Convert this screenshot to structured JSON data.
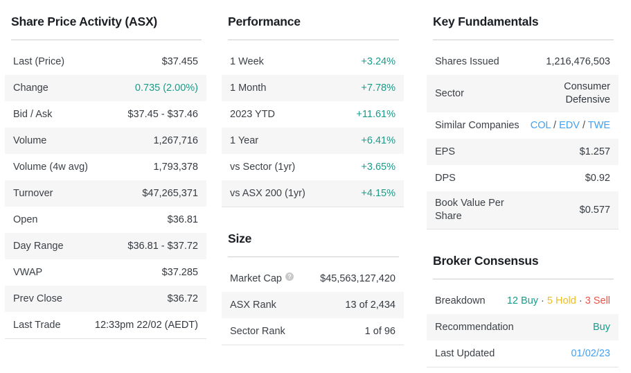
{
  "colors": {
    "positive": "#189c8a",
    "hold": "#eebd1f",
    "sell": "#e8544b",
    "link": "#41a0f0"
  },
  "icons": {
    "help": "?"
  },
  "columns": [
    {
      "sections": [
        {
          "id": "share-price-activity",
          "title": "Share Price Activity (ASX)",
          "rows": [
            {
              "label": "Last (Price)",
              "value": "$37.455"
            },
            {
              "label": "Change",
              "value": "0.735 (2.00%)",
              "value_style": "positive"
            },
            {
              "label": "Bid / Ask",
              "value": "$37.45 - $37.46"
            },
            {
              "label": "Volume",
              "value": "1,267,716"
            },
            {
              "label": "Volume (4w avg)",
              "value": "1,793,378"
            },
            {
              "label": "Turnover",
              "value": "$47,265,371"
            },
            {
              "label": "Open",
              "value": "$36.81"
            },
            {
              "label": "Day Range",
              "value": "$36.81 - $37.72"
            },
            {
              "label": "VWAP",
              "value": "$37.285"
            },
            {
              "label": "Prev Close",
              "value": "$36.72"
            },
            {
              "label": "Last Trade",
              "value": "12:33pm 22/02 (AEDT)"
            }
          ]
        }
      ]
    },
    {
      "sections": [
        {
          "id": "performance",
          "title": "Performance",
          "rows": [
            {
              "label": "1 Week",
              "value": "+3.24%",
              "value_style": "positive"
            },
            {
              "label": "1 Month",
              "value": "+7.78%",
              "value_style": "positive"
            },
            {
              "label": "2023 YTD",
              "value": "+11.61%",
              "value_style": "positive"
            },
            {
              "label": "1 Year",
              "value": "+6.41%",
              "value_style": "positive"
            },
            {
              "label": "vs Sector (1yr)",
              "value": "+3.65%",
              "value_style": "positive"
            },
            {
              "label": "vs ASX 200 (1yr)",
              "value": "+4.15%",
              "value_style": "positive"
            }
          ]
        },
        {
          "id": "size",
          "title": "Size",
          "rows": [
            {
              "label": "Market Cap",
              "help": true,
              "value": "$45,563,127,420"
            },
            {
              "label": "ASX Rank",
              "value": "13 of 2,434"
            },
            {
              "label": "Sector Rank",
              "value": "1 of 96"
            }
          ]
        }
      ]
    },
    {
      "sections": [
        {
          "id": "key-fundamentals",
          "title": "Key Fundamentals",
          "rows": [
            {
              "label": "Shares Issued",
              "value": "1,216,476,503"
            },
            {
              "label": "Sector",
              "value": "Consumer\nDefensive"
            },
            {
              "label": "Similar Companies",
              "parts": [
                {
                  "text": "COL",
                  "style": "link",
                  "name": "similar-company-link-col",
                  "interactable": true
                },
                {
                  "text": " / ",
                  "style": "sep"
                },
                {
                  "text": "EDV",
                  "style": "link",
                  "name": "similar-company-link-edv",
                  "interactable": true
                },
                {
                  "text": " / ",
                  "style": "sep"
                },
                {
                  "text": "TWE",
                  "style": "link",
                  "name": "similar-company-link-twe",
                  "interactable": true
                }
              ]
            },
            {
              "label": "EPS",
              "value": "$1.257"
            },
            {
              "label": "DPS",
              "value": "$0.92"
            },
            {
              "label": "Book Value Per\nShare",
              "value": "$0.577"
            }
          ]
        },
        {
          "id": "broker-consensus",
          "title": "Broker Consensus",
          "rows": [
            {
              "label": "Breakdown",
              "parts": [
                {
                  "text": "12 Buy",
                  "style": "positive",
                  "name": "buy-count"
                },
                {
                  "text": " · ",
                  "style": "sep"
                },
                {
                  "text": "5 Hold",
                  "style": "hold",
                  "name": "hold-count"
                },
                {
                  "text": " · ",
                  "style": "sep"
                },
                {
                  "text": "3 Sell",
                  "style": "sell",
                  "name": "sell-count"
                }
              ]
            },
            {
              "label": "Recommendation",
              "value": "Buy",
              "value_style": "positive"
            },
            {
              "label": "Last Updated",
              "value": "01/02/23",
              "value_style": "link",
              "value_name": "last-updated-link",
              "value_interactable": true
            }
          ]
        }
      ]
    }
  ]
}
